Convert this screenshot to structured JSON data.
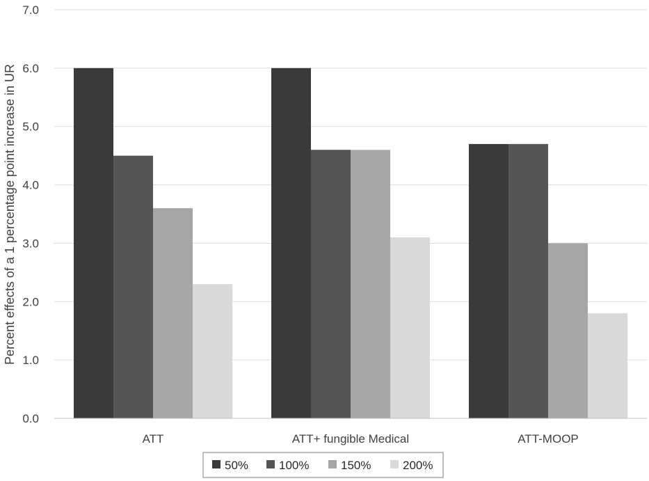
{
  "chart_data": {
    "type": "bar",
    "title": "",
    "xlabel": "",
    "ylabel": "Percent effects of a 1 percentage point increase in UR",
    "categories": [
      "ATT",
      "ATT+ fungible Medical",
      "ATT-MOOP"
    ],
    "series": [
      {
        "name": "50%",
        "values": [
          6.0,
          6.0,
          4.7
        ],
        "color": "#3a3a3a"
      },
      {
        "name": "100%",
        "values": [
          4.5,
          4.6,
          4.7
        ],
        "color": "#555555"
      },
      {
        "name": "150%",
        "values": [
          3.6,
          4.6,
          3.0
        ],
        "color": "#a6a6a6"
      },
      {
        "name": "200%",
        "values": [
          2.3,
          3.1,
          1.8
        ],
        "color": "#d9d9d9"
      }
    ],
    "ylim": [
      0,
      7
    ],
    "yticks": [
      "0.0",
      "1.0",
      "2.0",
      "3.0",
      "4.0",
      "5.0",
      "6.0",
      "7.0"
    ],
    "grid": true,
    "legend_position": "bottom"
  }
}
